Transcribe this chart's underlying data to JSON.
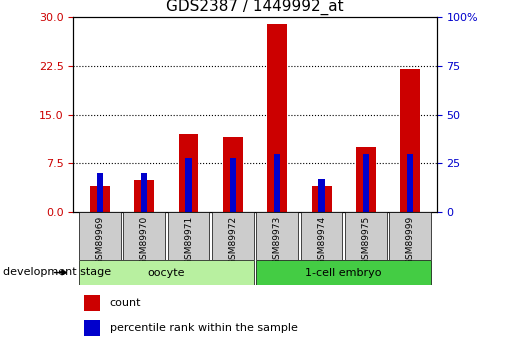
{
  "title": "GDS2387 / 1449992_at",
  "samples": [
    "GSM89969",
    "GSM89970",
    "GSM89971",
    "GSM89972",
    "GSM89973",
    "GSM89974",
    "GSM89975",
    "GSM89999"
  ],
  "count": [
    4.0,
    5.0,
    12.0,
    11.5,
    29.0,
    4.0,
    10.0,
    22.0
  ],
  "percentile": [
    20,
    20,
    28,
    28,
    30,
    17,
    30,
    30
  ],
  "left_ylim": [
    0,
    30
  ],
  "right_ylim": [
    0,
    100
  ],
  "left_yticks": [
    0,
    7.5,
    15,
    22.5,
    30
  ],
  "right_yticks": [
    0,
    25,
    50,
    75,
    100
  ],
  "bar_color_red": "#cc0000",
  "bar_color_blue": "#0000cc",
  "bar_width": 0.45,
  "grid_color": "black",
  "axis_label_color_left": "#cc0000",
  "axis_label_color_right": "#0000cc",
  "xlabel_group": "development stage",
  "legend_count": "count",
  "legend_percentile": "percentile rank within the sample",
  "title_fontsize": 11,
  "tick_fontsize": 8,
  "group_spans": [
    {
      "label": "oocyte",
      "start": 0,
      "end": 3,
      "color": "#b8f0a0"
    },
    {
      "label": "1-cell embryo",
      "start": 4,
      "end": 7,
      "color": "#44cc44"
    }
  ]
}
